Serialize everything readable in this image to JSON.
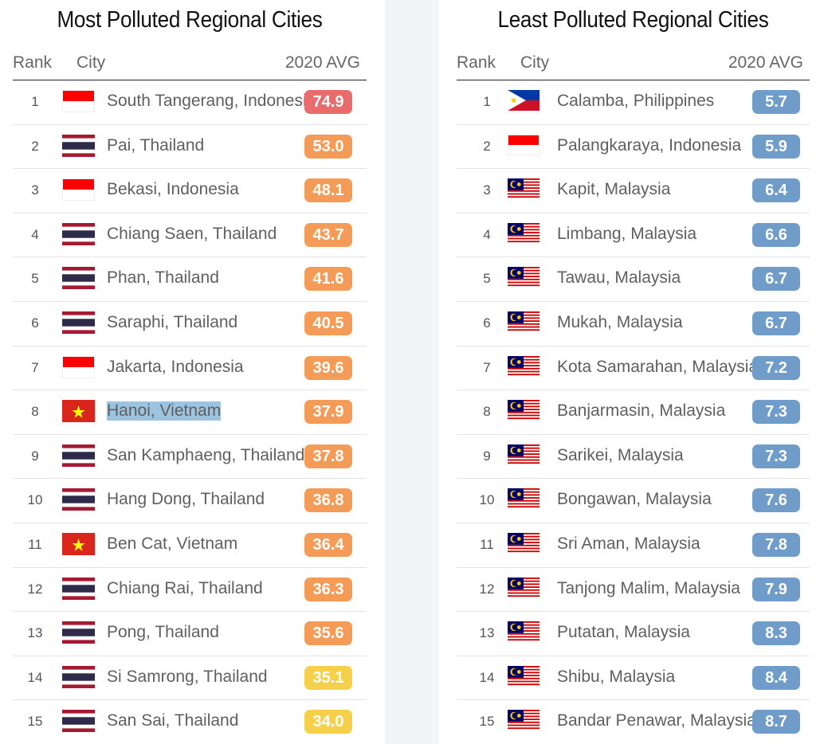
{
  "colors": {
    "red": "#e96b6b",
    "orange": "#f59b58",
    "yellow": "#f6d04b",
    "blue": "#6f9cc9"
  },
  "most": {
    "title": "Most Polluted Regional Cities",
    "headers": {
      "rank": "Rank",
      "city": "City",
      "avg": "2020 AVG"
    },
    "rows": [
      {
        "rank": "1",
        "city": "South Tangerang, Indonesia",
        "flag": "indonesia",
        "value": "74.9",
        "level": "red"
      },
      {
        "rank": "2",
        "city": "Pai, Thailand",
        "flag": "thailand",
        "value": "53.0",
        "level": "orange"
      },
      {
        "rank": "3",
        "city": "Bekasi, Indonesia",
        "flag": "indonesia",
        "value": "48.1",
        "level": "orange"
      },
      {
        "rank": "4",
        "city": "Chiang Saen, Thailand",
        "flag": "thailand",
        "value": "43.7",
        "level": "orange"
      },
      {
        "rank": "5",
        "city": "Phan, Thailand",
        "flag": "thailand",
        "value": "41.6",
        "level": "orange"
      },
      {
        "rank": "6",
        "city": "Saraphi, Thailand",
        "flag": "thailand",
        "value": "40.5",
        "level": "orange"
      },
      {
        "rank": "7",
        "city": "Jakarta, Indonesia",
        "flag": "indonesia",
        "value": "39.6",
        "level": "orange"
      },
      {
        "rank": "8",
        "city": "Hanoi, Vietnam",
        "flag": "vietnam",
        "value": "37.9",
        "level": "orange",
        "selected": true
      },
      {
        "rank": "9",
        "city": "San Kamphaeng, Thailand",
        "flag": "thailand",
        "value": "37.8",
        "level": "orange"
      },
      {
        "rank": "10",
        "city": "Hang Dong, Thailand",
        "flag": "thailand",
        "value": "36.8",
        "level": "orange"
      },
      {
        "rank": "11",
        "city": "Ben Cat, Vietnam",
        "flag": "vietnam",
        "value": "36.4",
        "level": "orange"
      },
      {
        "rank": "12",
        "city": "Chiang Rai, Thailand",
        "flag": "thailand",
        "value": "36.3",
        "level": "orange"
      },
      {
        "rank": "13",
        "city": "Pong, Thailand",
        "flag": "thailand",
        "value": "35.6",
        "level": "orange"
      },
      {
        "rank": "14",
        "city": "Si Samrong, Thailand",
        "flag": "thailand",
        "value": "35.1",
        "level": "yellow"
      },
      {
        "rank": "15",
        "city": "San Sai, Thailand",
        "flag": "thailand",
        "value": "34.0",
        "level": "yellow"
      }
    ]
  },
  "least": {
    "title": "Least Polluted Regional Cities",
    "headers": {
      "rank": "Rank",
      "city": "City",
      "avg": "2020 AVG"
    },
    "rows": [
      {
        "rank": "1",
        "city": "Calamba, Philippines",
        "flag": "philippines",
        "value": "5.7",
        "level": "blue"
      },
      {
        "rank": "2",
        "city": "Palangkaraya, Indonesia",
        "flag": "indonesia",
        "value": "5.9",
        "level": "blue"
      },
      {
        "rank": "3",
        "city": "Kapit, Malaysia",
        "flag": "malaysia",
        "value": "6.4",
        "level": "blue"
      },
      {
        "rank": "4",
        "city": "Limbang, Malaysia",
        "flag": "malaysia",
        "value": "6.6",
        "level": "blue"
      },
      {
        "rank": "5",
        "city": "Tawau, Malaysia",
        "flag": "malaysia",
        "value": "6.7",
        "level": "blue"
      },
      {
        "rank": "6",
        "city": "Mukah, Malaysia",
        "flag": "malaysia",
        "value": "6.7",
        "level": "blue"
      },
      {
        "rank": "7",
        "city": "Kota Samarahan, Malaysia",
        "flag": "malaysia",
        "value": "7.2",
        "level": "blue"
      },
      {
        "rank": "8",
        "city": "Banjarmasin, Malaysia",
        "flag": "malaysia",
        "value": "7.3",
        "level": "blue"
      },
      {
        "rank": "9",
        "city": "Sarikei, Malaysia",
        "flag": "malaysia",
        "value": "7.3",
        "level": "blue"
      },
      {
        "rank": "10",
        "city": "Bongawan, Malaysia",
        "flag": "malaysia",
        "value": "7.6",
        "level": "blue"
      },
      {
        "rank": "11",
        "city": "Sri Aman, Malaysia",
        "flag": "malaysia",
        "value": "7.8",
        "level": "blue"
      },
      {
        "rank": "12",
        "city": "Tanjong Malim, Malaysia",
        "flag": "malaysia",
        "value": "7.9",
        "level": "blue"
      },
      {
        "rank": "13",
        "city": "Putatan, Malaysia",
        "flag": "malaysia",
        "value": "8.3",
        "level": "blue"
      },
      {
        "rank": "14",
        "city": "Shibu, Malaysia",
        "flag": "malaysia",
        "value": "8.4",
        "level": "blue"
      },
      {
        "rank": "15",
        "city": "Bandar Penawar, Malaysia",
        "flag": "malaysia",
        "value": "8.7",
        "level": "blue"
      }
    ]
  }
}
